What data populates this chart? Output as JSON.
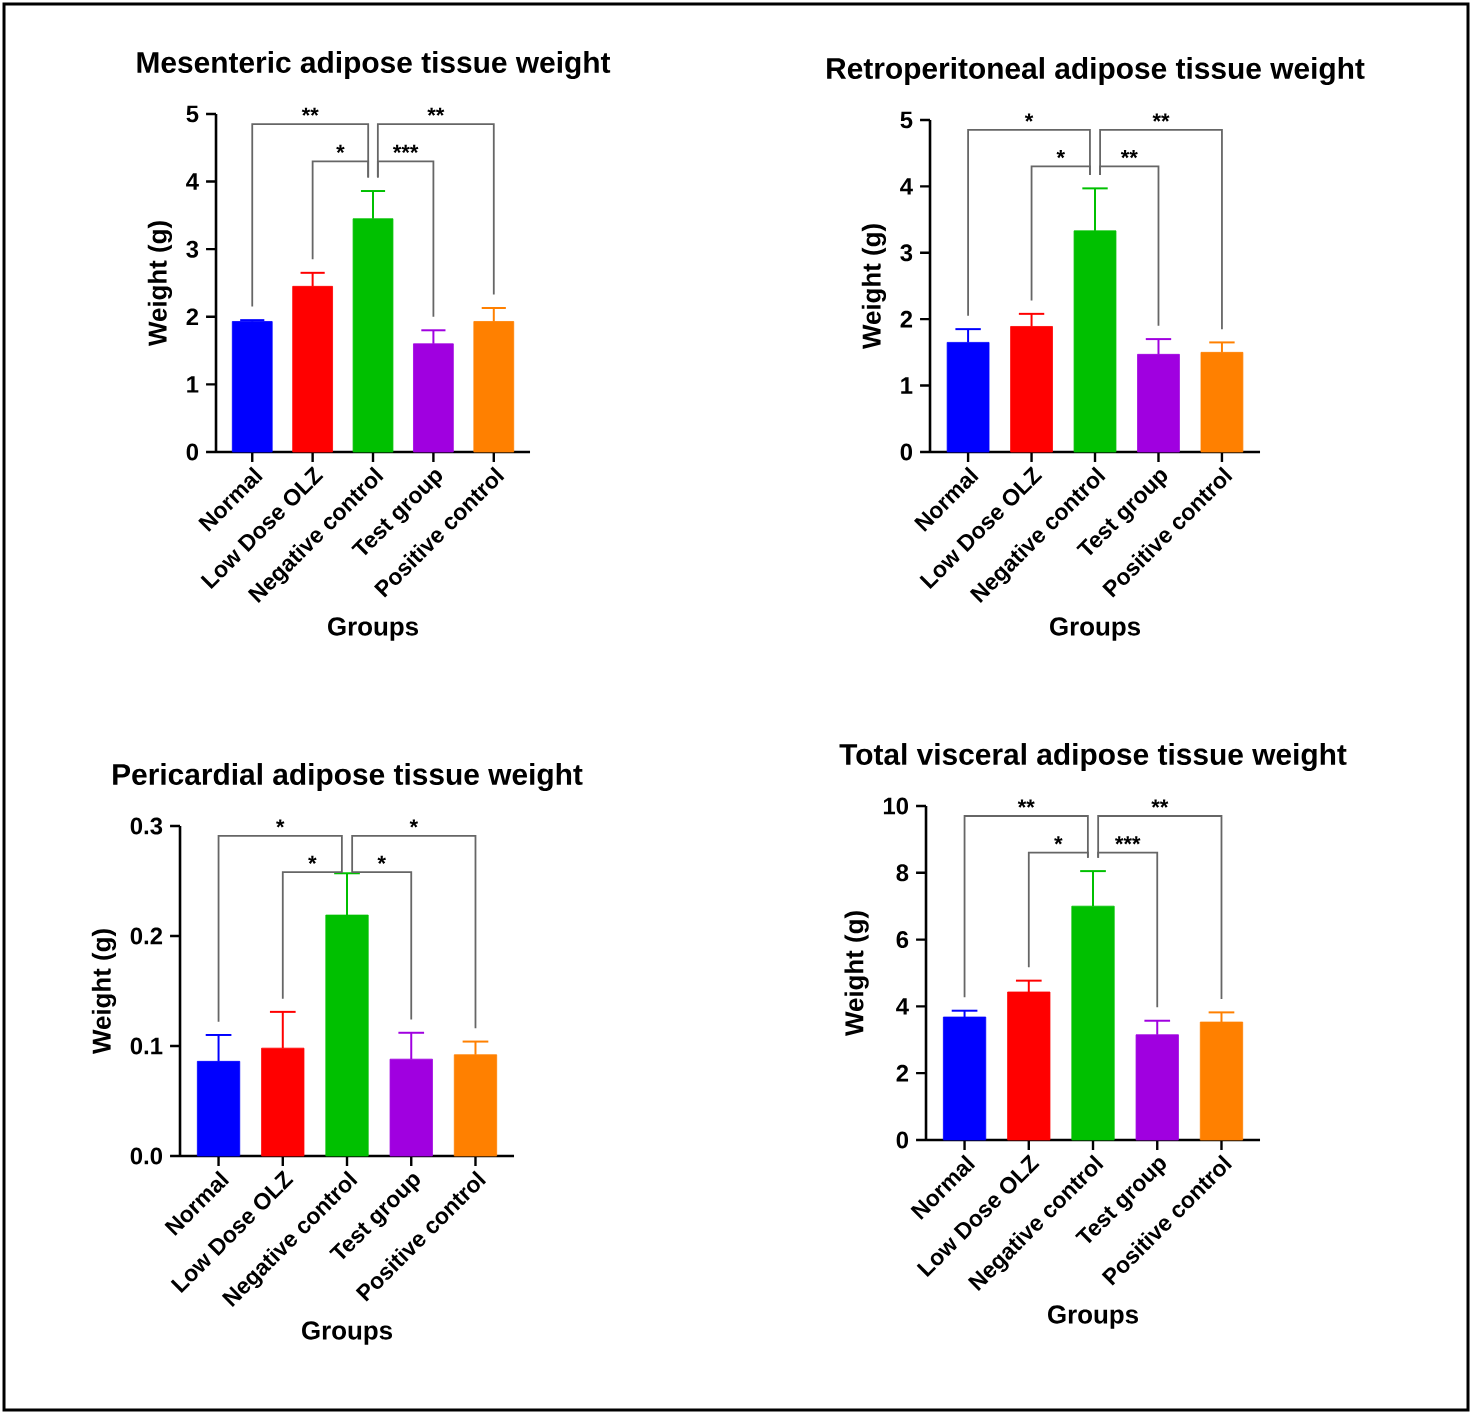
{
  "chart_data": [
    {
      "type": "bar",
      "title": "Mesenteric adipose tissue weight",
      "xlabel": "Groups",
      "ylabel": "Weight (g)",
      "categories": [
        "Normal",
        "Low Dose OLZ",
        "Negative control",
        "Test group",
        "Positive control"
      ],
      "colors": [
        "#0000ff",
        "#ff0000",
        "#00c000",
        "#a000e0",
        "#ff8000"
      ],
      "values": [
        1.93,
        2.45,
        3.45,
        1.6,
        1.93
      ],
      "errors": [
        [
          1.93,
          1.95
        ],
        [
          2.45,
          2.65
        ],
        [
          3.45,
          3.86
        ],
        [
          1.6,
          1.8
        ],
        [
          1.93,
          2.13
        ]
      ],
      "ylim": [
        0,
        5
      ],
      "yticks": [
        0,
        1,
        2,
        3,
        4,
        5
      ],
      "annotations": [
        "**",
        "*",
        "***",
        "**"
      ]
    },
    {
      "type": "bar",
      "title": "Retroperitoneal adipose tissue weight",
      "xlabel": "Groups",
      "ylabel": "Weight (g)",
      "categories": [
        "Normal",
        "Low Dose OLZ",
        "Negative control",
        "Test group",
        "Positive control"
      ],
      "colors": [
        "#0000ff",
        "#ff0000",
        "#00c000",
        "#a000e0",
        "#ff8000"
      ],
      "values": [
        1.65,
        1.89,
        3.33,
        1.47,
        1.5
      ],
      "errors": [
        [
          1.65,
          1.85
        ],
        [
          1.89,
          2.08
        ],
        [
          3.33,
          3.97
        ],
        [
          1.47,
          1.7
        ],
        [
          1.5,
          1.65
        ]
      ],
      "ylim": [
        0,
        5
      ],
      "yticks": [
        0,
        1,
        2,
        3,
        4,
        5
      ],
      "annotations": [
        "*",
        "*",
        "**",
        "**"
      ]
    },
    {
      "type": "bar",
      "title": "Pericardial adipose tissue weight",
      "xlabel": "Groups",
      "ylabel": "Weight (g)",
      "categories": [
        "Normal",
        "Low Dose OLZ",
        "Negative control",
        "Test group",
        "Positive control"
      ],
      "colors": [
        "#0000ff",
        "#ff0000",
        "#00c000",
        "#a000e0",
        "#ff8000"
      ],
      "values": [
        0.086,
        0.098,
        0.219,
        0.088,
        0.092
      ],
      "errors": [
        [
          0.086,
          0.11
        ],
        [
          0.098,
          0.131
        ],
        [
          0.219,
          0.257
        ],
        [
          0.088,
          0.112
        ],
        [
          0.092,
          0.104
        ]
      ],
      "ylim": [
        0,
        0.3
      ],
      "yticks": [
        {
          "value": 0,
          "label": "0.0"
        },
        0.1,
        0.2,
        0.3
      ],
      "annotations": [
        "*",
        "*",
        "*",
        "*"
      ]
    },
    {
      "type": "bar",
      "title": "Total visceral adipose tissue weight",
      "xlabel": "Groups",
      "ylabel": "Weight (g)",
      "categories": [
        "Normal",
        "Low Dose OLZ",
        "Negative control",
        "Test group",
        "Positive control"
      ],
      "colors": [
        "#0000ff",
        "#ff0000",
        "#00c000",
        "#a000e0",
        "#ff8000"
      ],
      "values": [
        3.68,
        4.43,
        7.0,
        3.15,
        3.53
      ],
      "errors": [
        [
          3.68,
          3.87
        ],
        [
          4.43,
          4.77
        ],
        [
          7.0,
          8.05
        ],
        [
          3.15,
          3.57
        ],
        [
          3.53,
          3.82
        ]
      ],
      "ylim": [
        0,
        10
      ],
      "yticks": [
        0,
        2,
        4,
        6,
        8,
        10
      ],
      "annotations": [
        "**",
        "*",
        "***",
        "**"
      ]
    }
  ]
}
